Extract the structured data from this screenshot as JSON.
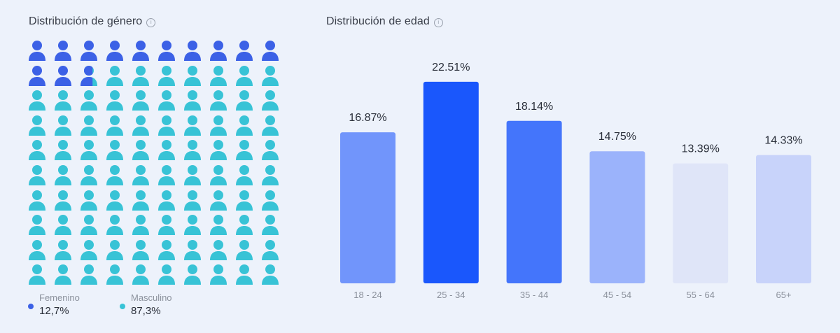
{
  "gender": {
    "title": "Distribución de género",
    "info_icon": "info-icon",
    "person_icon": "person-icon",
    "legend": [
      {
        "label": "Femenino",
        "value": "12,7%",
        "color": "#3c61e6"
      },
      {
        "label": "Masculino",
        "value": "87,3%",
        "color": "#38c3d6"
      }
    ],
    "chart_data": {
      "type": "pictograph",
      "total_icons": 100,
      "categories": [
        "Femenino",
        "Masculino"
      ],
      "values": [
        12.7,
        87.3
      ],
      "colors": [
        "#3c61e6",
        "#38c3d6"
      ]
    }
  },
  "age": {
    "title": "Distribución de edad",
    "info_icon": "info-icon",
    "chart_data": {
      "type": "bar",
      "categories": [
        "18 - 24",
        "25 - 34",
        "35 - 44",
        "45 - 54",
        "55 - 64",
        "65+"
      ],
      "values": [
        16.87,
        22.51,
        18.14,
        14.75,
        13.39,
        14.33
      ],
      "data_labels": [
        "16.87%",
        "22.51%",
        "18.14%",
        "14.75%",
        "13.39%",
        "14.33%"
      ],
      "colors": [
        "#7195fb",
        "#1a57fc",
        "#4475fb",
        "#9bb3fb",
        "#dfe5f8",
        "#c8d3fa"
      ],
      "grid": false,
      "title": "",
      "xlabel": "",
      "ylabel": ""
    }
  }
}
